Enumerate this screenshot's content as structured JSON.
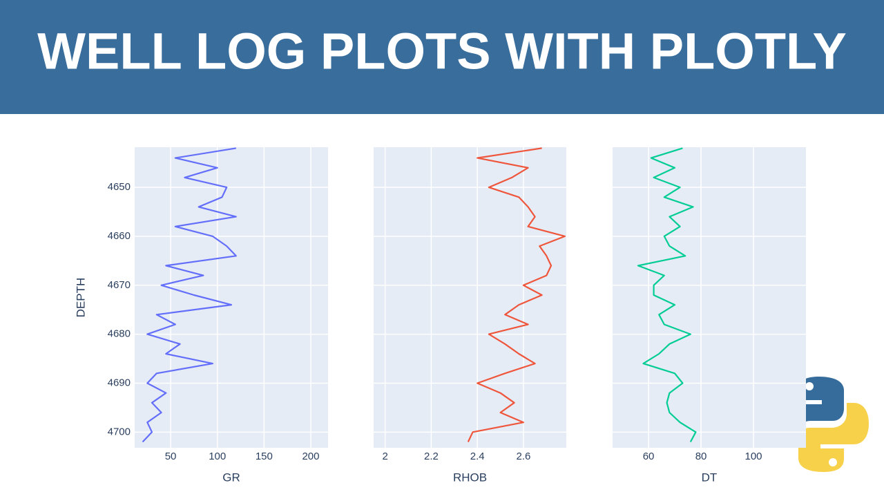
{
  "title": "WELL LOG PLOTS WITH PLOTLY",
  "chart_data": [
    {
      "type": "line",
      "xlabel": "GR",
      "ylabel": "DEPTH",
      "color": "#636efa",
      "y": [
        4642,
        4644,
        4646,
        4648,
        4650,
        4652,
        4654,
        4656,
        4658,
        4660,
        4662,
        4664,
        4666,
        4668,
        4670,
        4672,
        4674,
        4676,
        4678,
        4680,
        4682,
        4684,
        4686,
        4688,
        4690,
        4692,
        4694,
        4696,
        4698,
        4700,
        4702
      ],
      "values": [
        120,
        55,
        100,
        65,
        110,
        105,
        80,
        120,
        55,
        95,
        110,
        120,
        45,
        85,
        40,
        75,
        115,
        35,
        55,
        25,
        60,
        45,
        95,
        35,
        25,
        45,
        30,
        40,
        25,
        30,
        20
      ],
      "xlim": [
        11.5,
        218.5
      ],
      "xticks": [
        50,
        100,
        150,
        200
      ],
      "ylim": [
        4641.8,
        4703.2
      ],
      "yticks": [
        4650,
        4660,
        4670,
        4680,
        4690,
        4700
      ],
      "grid": true
    },
    {
      "type": "line",
      "xlabel": "RHOB",
      "color": "#ef553b",
      "y": [
        4642,
        4644,
        4646,
        4648,
        4650,
        4652,
        4654,
        4656,
        4658,
        4660,
        4662,
        4664,
        4666,
        4668,
        4670,
        4672,
        4674,
        4676,
        4678,
        4680,
        4682,
        4684,
        4686,
        4688,
        4690,
        4692,
        4694,
        4696,
        4698,
        4700,
        4702
      ],
      "values": [
        2.68,
        2.4,
        2.62,
        2.55,
        2.45,
        2.58,
        2.62,
        2.65,
        2.62,
        2.78,
        2.67,
        2.7,
        2.72,
        2.7,
        2.6,
        2.68,
        2.58,
        2.52,
        2.62,
        2.45,
        2.52,
        2.58,
        2.65,
        2.52,
        2.4,
        2.5,
        2.56,
        2.5,
        2.6,
        2.38,
        2.36
      ],
      "xlim": [
        1.95,
        2.786
      ],
      "xticks": [
        2,
        2.2,
        2.4,
        2.6
      ],
      "ylim": [
        4641.8,
        4703.2
      ],
      "yticks": [
        4650,
        4660,
        4670,
        4680,
        4690,
        4700
      ],
      "grid": true
    },
    {
      "type": "line",
      "xlabel": "DT",
      "color": "#00cc96",
      "y": [
        4642,
        4644,
        4646,
        4648,
        4650,
        4652,
        4654,
        4656,
        4658,
        4660,
        4662,
        4664,
        4666,
        4668,
        4670,
        4672,
        4674,
        4676,
        4678,
        4680,
        4682,
        4684,
        4686,
        4688,
        4690,
        4692,
        4694,
        4696,
        4698,
        4700,
        4702
      ],
      "values": [
        73,
        61,
        70,
        62,
        72,
        66,
        77,
        68,
        72,
        66,
        68,
        74,
        56,
        66,
        62,
        62,
        70,
        64,
        66,
        76,
        68,
        64,
        58,
        70,
        73,
        68,
        67,
        68,
        72,
        78,
        76
      ],
      "xlim": [
        46.3,
        120
      ],
      "xticks": [
        60,
        80,
        100
      ],
      "ylim": [
        4641.8,
        4703.2
      ],
      "yticks": [
        4650,
        4660,
        4670,
        4680,
        4690,
        4700
      ],
      "grid": true
    }
  ]
}
